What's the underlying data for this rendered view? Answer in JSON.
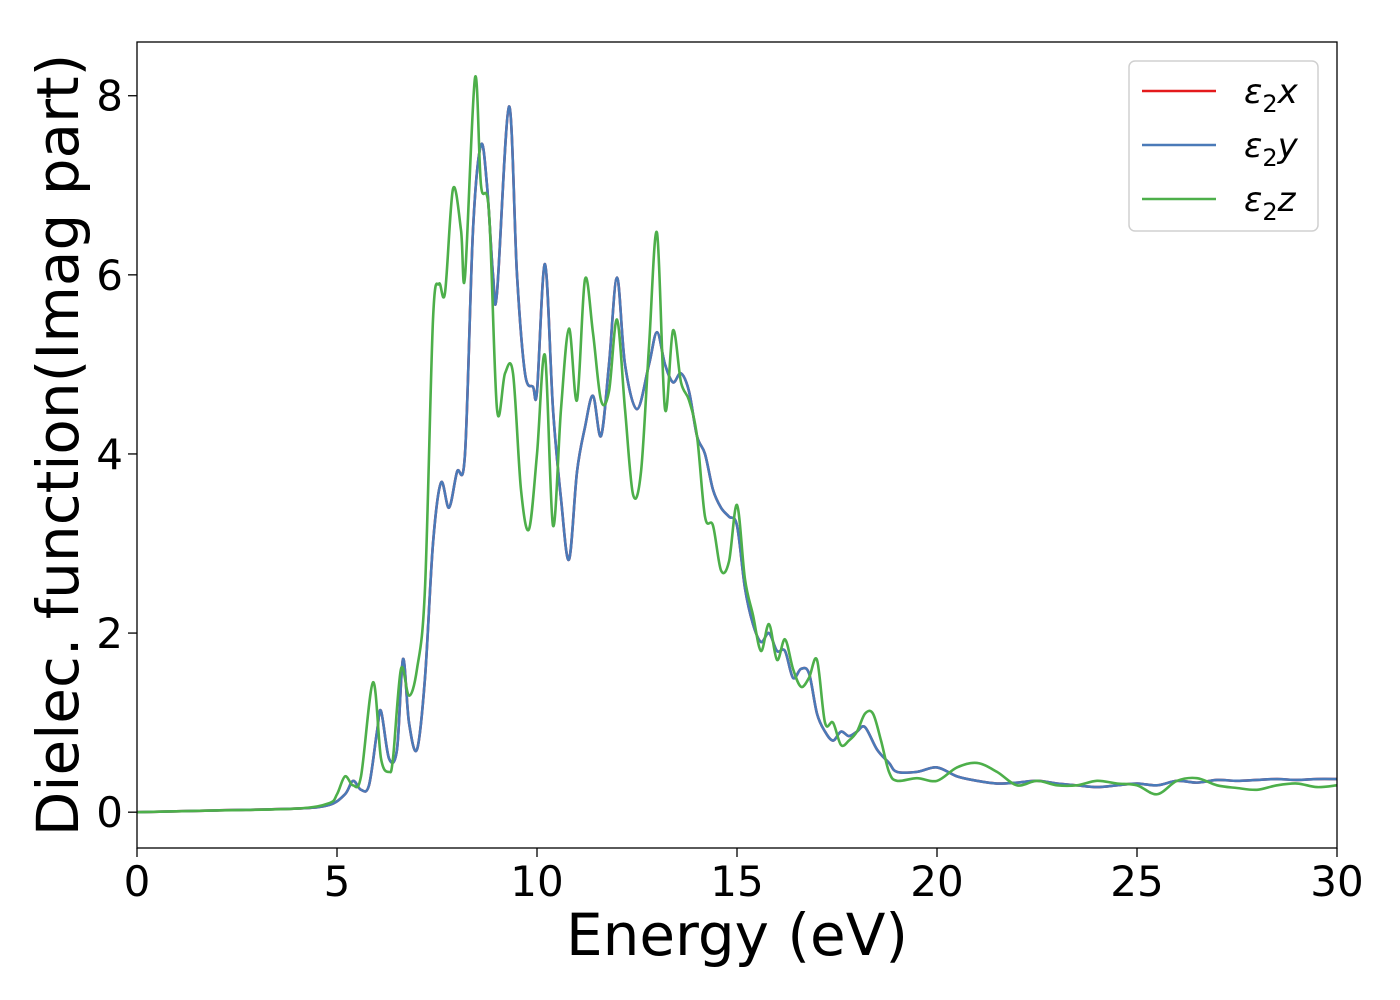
{
  "chart_data": {
    "type": "line",
    "xlabel": "Energy (eV)",
    "ylabel": "Dielec. function(Imag part)",
    "xlim": [
      0,
      30
    ],
    "ylim": [
      -0.4,
      8.6
    ],
    "x_ticks": [
      0,
      5,
      10,
      15,
      20,
      25,
      30
    ],
    "y_ticks": [
      0,
      2,
      4,
      6,
      8
    ],
    "grid": false,
    "legend_position": "top-right",
    "series": [
      {
        "name": "ε2x",
        "legend_base": "ε",
        "legend_sub": "2",
        "legend_var": "x",
        "color": "#e41a1c",
        "x": [
          0,
          2,
          4,
          4.8,
          5.2,
          5.4,
          5.6,
          5.8,
          6.0,
          6.1,
          6.3,
          6.5,
          6.65,
          6.8,
          7.0,
          7.2,
          7.4,
          7.6,
          7.8,
          8.0,
          8.2,
          8.4,
          8.6,
          8.75,
          8.9,
          9.0,
          9.3,
          9.5,
          9.7,
          9.9,
          10.0,
          10.2,
          10.4,
          10.6,
          10.8,
          11.0,
          11.2,
          11.4,
          11.6,
          11.8,
          12.0,
          12.2,
          12.5,
          12.8,
          13.0,
          13.2,
          13.4,
          13.6,
          13.8,
          14.0,
          14.2,
          14.4,
          14.6,
          14.8,
          15.0,
          15.2,
          15.4,
          15.6,
          15.8,
          16.0,
          16.2,
          16.4,
          16.6,
          16.8,
          17.0,
          17.2,
          17.4,
          17.6,
          17.8,
          18.0,
          18.2,
          18.5,
          18.8,
          19.0,
          19.5,
          20.0,
          20.5,
          21.0,
          21.5,
          22.0,
          22.5,
          23.0,
          23.5,
          24.0,
          24.5,
          25.0,
          25.5,
          26.0,
          26.5,
          27.0,
          27.5,
          28.0,
          28.5,
          29.0,
          29.5,
          30.0
        ],
        "y": [
          0.0,
          0.02,
          0.04,
          0.08,
          0.2,
          0.35,
          0.25,
          0.3,
          0.9,
          1.13,
          0.6,
          0.7,
          1.71,
          1.0,
          0.7,
          1.5,
          3.0,
          3.68,
          3.4,
          3.8,
          4.0,
          6.5,
          7.45,
          7.0,
          6.0,
          5.8,
          7.88,
          6.0,
          4.9,
          4.75,
          4.7,
          6.12,
          4.5,
          3.5,
          2.82,
          3.8,
          4.3,
          4.65,
          4.2,
          5.0,
          5.97,
          5.0,
          4.5,
          5.0,
          5.36,
          5.0,
          4.8,
          4.9,
          4.7,
          4.2,
          4.0,
          3.6,
          3.4,
          3.3,
          3.2,
          2.5,
          2.1,
          1.9,
          2.0,
          1.8,
          1.8,
          1.5,
          1.6,
          1.55,
          1.1,
          0.9,
          0.8,
          0.9,
          0.85,
          0.9,
          0.95,
          0.7,
          0.55,
          0.45,
          0.45,
          0.5,
          0.4,
          0.35,
          0.32,
          0.33,
          0.35,
          0.32,
          0.3,
          0.28,
          0.3,
          0.32,
          0.3,
          0.35,
          0.33,
          0.36,
          0.35,
          0.36,
          0.37,
          0.36,
          0.37,
          0.37
        ]
      },
      {
        "name": "ε2y",
        "legend_base": "ε",
        "legend_sub": "2",
        "legend_var": "y",
        "color": "#4a7ab8",
        "x": [
          0,
          2,
          4,
          4.8,
          5.2,
          5.4,
          5.6,
          5.8,
          6.0,
          6.1,
          6.3,
          6.5,
          6.65,
          6.8,
          7.0,
          7.2,
          7.4,
          7.6,
          7.8,
          8.0,
          8.2,
          8.4,
          8.6,
          8.75,
          8.9,
          9.0,
          9.3,
          9.5,
          9.7,
          9.9,
          10.0,
          10.2,
          10.4,
          10.6,
          10.8,
          11.0,
          11.2,
          11.4,
          11.6,
          11.8,
          12.0,
          12.2,
          12.5,
          12.8,
          13.0,
          13.2,
          13.4,
          13.6,
          13.8,
          14.0,
          14.2,
          14.4,
          14.6,
          14.8,
          15.0,
          15.2,
          15.4,
          15.6,
          15.8,
          16.0,
          16.2,
          16.4,
          16.6,
          16.8,
          17.0,
          17.2,
          17.4,
          17.6,
          17.8,
          18.0,
          18.2,
          18.5,
          18.8,
          19.0,
          19.5,
          20.0,
          20.5,
          21.0,
          21.5,
          22.0,
          22.5,
          23.0,
          23.5,
          24.0,
          24.5,
          25.0,
          25.5,
          26.0,
          26.5,
          27.0,
          27.5,
          28.0,
          28.5,
          29.0,
          29.5,
          30.0
        ],
        "y": [
          0.0,
          0.02,
          0.04,
          0.08,
          0.2,
          0.35,
          0.25,
          0.3,
          0.9,
          1.13,
          0.6,
          0.7,
          1.71,
          1.0,
          0.7,
          1.5,
          3.0,
          3.68,
          3.4,
          3.8,
          4.0,
          6.5,
          7.45,
          7.0,
          6.0,
          5.8,
          7.88,
          6.0,
          4.9,
          4.75,
          4.7,
          6.12,
          4.5,
          3.5,
          2.82,
          3.8,
          4.3,
          4.65,
          4.2,
          5.0,
          5.97,
          5.0,
          4.5,
          5.0,
          5.36,
          5.0,
          4.8,
          4.9,
          4.7,
          4.2,
          4.0,
          3.6,
          3.4,
          3.3,
          3.2,
          2.5,
          2.1,
          1.9,
          2.0,
          1.8,
          1.8,
          1.5,
          1.6,
          1.55,
          1.1,
          0.9,
          0.8,
          0.9,
          0.85,
          0.9,
          0.95,
          0.7,
          0.55,
          0.45,
          0.45,
          0.5,
          0.4,
          0.35,
          0.32,
          0.33,
          0.35,
          0.32,
          0.3,
          0.28,
          0.3,
          0.32,
          0.3,
          0.35,
          0.33,
          0.36,
          0.35,
          0.36,
          0.37,
          0.36,
          0.37,
          0.37
        ]
      },
      {
        "name": "ε2z",
        "legend_base": "ε",
        "legend_sub": "2",
        "legend_var": "z",
        "color": "#4daf4a",
        "x": [
          0,
          2,
          4,
          4.8,
          5.0,
          5.2,
          5.4,
          5.6,
          5.9,
          6.1,
          6.3,
          6.4,
          6.6,
          6.8,
          7.0,
          7.2,
          7.4,
          7.55,
          7.7,
          7.9,
          8.1,
          8.2,
          8.45,
          8.6,
          8.8,
          9.0,
          9.2,
          9.4,
          9.6,
          9.8,
          10.0,
          10.2,
          10.4,
          10.6,
          10.8,
          11.0,
          11.2,
          11.4,
          11.6,
          11.8,
          12.0,
          12.2,
          12.4,
          12.6,
          12.8,
          13.0,
          13.2,
          13.4,
          13.6,
          13.8,
          14.0,
          14.2,
          14.4,
          14.6,
          14.8,
          15.0,
          15.2,
          15.4,
          15.6,
          15.8,
          16.0,
          16.2,
          16.4,
          16.6,
          16.8,
          17.0,
          17.2,
          17.4,
          17.6,
          17.8,
          18.0,
          18.2,
          18.4,
          18.6,
          18.8,
          19.0,
          19.5,
          20.0,
          20.5,
          21.0,
          21.5,
          22.0,
          22.5,
          23.0,
          23.5,
          24.0,
          24.5,
          25.0,
          25.5,
          26.0,
          26.5,
          27.0,
          27.5,
          28.0,
          28.5,
          29.0,
          29.5,
          30.0
        ],
        "y": [
          0.0,
          0.02,
          0.04,
          0.1,
          0.2,
          0.4,
          0.3,
          0.4,
          1.45,
          0.6,
          0.45,
          0.6,
          1.6,
          1.3,
          1.6,
          2.5,
          5.5,
          5.9,
          5.8,
          6.96,
          6.5,
          5.98,
          8.2,
          7.0,
          6.7,
          4.5,
          4.9,
          4.9,
          3.6,
          3.16,
          4.0,
          5.1,
          3.2,
          4.5,
          5.4,
          4.6,
          5.95,
          5.35,
          4.6,
          4.7,
          5.5,
          4.5,
          3.55,
          3.8,
          5.2,
          6.47,
          4.5,
          5.38,
          4.8,
          4.6,
          4.2,
          3.3,
          3.2,
          2.7,
          2.8,
          3.43,
          2.6,
          2.2,
          1.8,
          2.1,
          1.7,
          1.93,
          1.6,
          1.4,
          1.5,
          1.7,
          1.0,
          1.0,
          0.75,
          0.8,
          0.9,
          1.1,
          1.1,
          0.8,
          0.45,
          0.35,
          0.38,
          0.35,
          0.5,
          0.55,
          0.45,
          0.3,
          0.35,
          0.3,
          0.3,
          0.35,
          0.32,
          0.3,
          0.2,
          0.35,
          0.38,
          0.3,
          0.27,
          0.25,
          0.3,
          0.32,
          0.28,
          0.3
        ]
      }
    ]
  }
}
